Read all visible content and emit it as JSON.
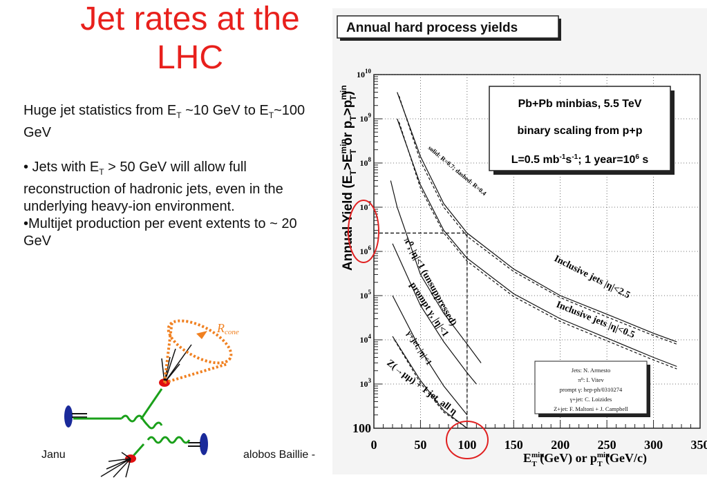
{
  "slide": {
    "title_line1": "Jet rates at the",
    "title_line2": "LHC",
    "footer_left": "Janu",
    "footer_right": "alobos Baillie -"
  },
  "body": {
    "p1": {
      "pre": "Huge jet statistics from E",
      "sub1": "T",
      "mid": " ~10 GeV to ",
      "e": "E",
      "sub2": "T",
      "post": "~100 GeV"
    },
    "p2": {
      "pre": "• Jets with E",
      "sub": "T",
      "post": " > 50 GeV will allow full reconstruction of hadronic jets, even in the underlying heavy-ion environment."
    },
    "p3": "•Multijet production per event extents to ~ 20 GeV"
  },
  "diagram": {
    "cone_label": "R",
    "cone_sub": "cone"
  },
  "colors": {
    "title": "#e8201c",
    "highlight_circle": "#e02020",
    "green_line": "#1aa01a",
    "gluon": "#1aa01a",
    "cone": "#f08020",
    "beam": "#1a2a9a",
    "vertex": "#e01010"
  },
  "chart_data": {
    "type": "line",
    "title": "Annual hard process yields",
    "xlabel": "E_T^min (GeV)  or p_T^min (GeV/c)",
    "ylabel": "Annual Yield (E_T>E_T^min or p_T>p_T^min)",
    "xlim": [
      0,
      350
    ],
    "ylim": [
      100,
      10000000000
    ],
    "yscale": "log",
    "xticks": [
      0,
      50,
      100,
      150,
      200,
      250,
      300,
      350
    ],
    "yticks": [
      {
        "v": 1000,
        "label": "10^3"
      },
      {
        "v": 10000,
        "label": "10^4"
      },
      {
        "v": 100000,
        "label": "10^5"
      },
      {
        "v": 1000000,
        "label": "10^6"
      },
      {
        "v": 10000000,
        "label": "10^7"
      },
      {
        "v": 100000000,
        "label": "10^8"
      },
      {
        "v": 1000000000,
        "label": "10^9"
      },
      {
        "v": 10000000000,
        "label": "10^10"
      }
    ],
    "ytick_100_label": "100",
    "grid": true,
    "info_box": {
      "line1": "Pb+Pb minbias, 5.5 TeV",
      "line2": "binary scaling from p+p",
      "line3_pre": "L=0.5 mb",
      "line3_sup1": "-1",
      "line3_mid": "s",
      "line3_sup2": "-1",
      "line3_post": "; 1 year=10",
      "line3_sup3": "6",
      "line3_end": " s"
    },
    "credits": [
      "Jets: N. Armesto",
      "π⁰: I. Vitev",
      "prompt γ: hep-ph/0310274",
      "γ+jet: C. Loizides",
      "Z+jet: F. Maltoni + J. Campbell"
    ],
    "annotations": {
      "legend_note": "solid: R=0.7; dashed: R=0.4",
      "jets_eta25": "Inclusive jets |η|<2.5",
      "jets_eta05": "Inclusive jets |η|<0.5",
      "pi0": "π⁰, |η|<1 (unsuppressed)",
      "prompt_gamma": "prompt γ, |η|<1",
      "gamma_jet": "γ+jet, |η|<1",
      "z_jet": "Z(→μμ) + 1 jet, all η"
    },
    "dashed_marker": {
      "x": 100,
      "y": 2600000
    },
    "series": [
      {
        "id": "jets_eta25_solid",
        "style": "solid",
        "x": [
          25,
          50,
          75,
          100,
          150,
          200,
          250,
          300,
          325
        ],
        "y": [
          4000000000,
          140000000,
          12000000,
          2600000,
          400000,
          100000,
          38000,
          14000,
          9000
        ]
      },
      {
        "id": "jets_eta25_dashed",
        "style": "dashed",
        "x": [
          27,
          50,
          75,
          100,
          150,
          200,
          250,
          300,
          325
        ],
        "y": [
          3300000000,
          110000000,
          10000000,
          2200000,
          350000,
          90000,
          33000,
          12500,
          8000
        ]
      },
      {
        "id": "jets_eta05_solid",
        "style": "solid",
        "x": [
          25,
          50,
          75,
          100,
          150,
          200,
          250,
          300,
          325
        ],
        "y": [
          1000000000,
          32000000,
          3000000,
          700000,
          110000,
          30000,
          11000,
          4000,
          2500
        ]
      },
      {
        "id": "jets_eta05_dashed",
        "style": "dashed",
        "x": [
          27,
          50,
          75,
          100,
          150,
          200,
          250,
          300,
          325
        ],
        "y": [
          850000000,
          27000000,
          2600000,
          600000,
          95000,
          26000,
          9500,
          3500,
          2200
        ]
      },
      {
        "id": "pi0",
        "style": "solid",
        "x": [
          18,
          25,
          50,
          75,
          100,
          115
        ],
        "y": [
          40000000,
          10000000,
          300000,
          40000,
          8000,
          3000
        ]
      },
      {
        "id": "prompt_gamma",
        "style": "solid",
        "x": [
          20,
          50,
          75,
          100,
          110
        ],
        "y": [
          1500000,
          60000,
          9000,
          1800,
          1000
        ]
      },
      {
        "id": "gamma_jet",
        "style": "solid",
        "x": [
          20,
          50,
          75,
          100
        ],
        "y": [
          100000,
          6000,
          900,
          200
        ]
      },
      {
        "id": "z_jet_solid",
        "style": "solid",
        "x": [
          20,
          50,
          75,
          100
        ],
        "y": [
          12000,
          1200,
          250,
          100
        ]
      },
      {
        "id": "z_jet_dashed",
        "style": "dashed",
        "x": [
          22,
          50,
          75,
          100
        ],
        "y": [
          10000,
          1050,
          230,
          100
        ]
      }
    ]
  }
}
